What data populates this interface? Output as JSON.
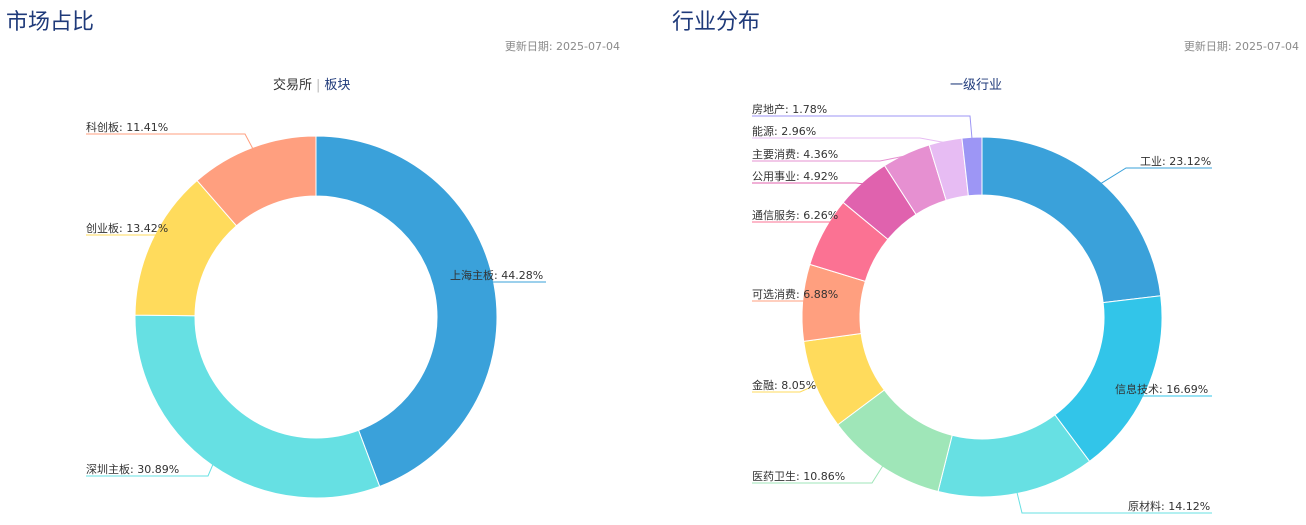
{
  "left_panel": {
    "title": "市场占比",
    "update_date": "更新日期: 2025-07-04",
    "tabs": [
      "交易所",
      "板块"
    ]
  },
  "right_panel": {
    "title": "行业分布",
    "update_date": "更新日期: 2025-07-04",
    "tab": "一级行业"
  },
  "chart_data": [
    {
      "type": "pie",
      "donut": true,
      "categories": [
        "上海主板",
        "深圳主板",
        "创业板",
        "科创板"
      ],
      "values": [
        44.28,
        30.89,
        13.42,
        11.41
      ],
      "labels": [
        "上海主板: 44.28%",
        "深圳主板: 30.89%",
        "创业板: 13.42%",
        "科创板: 11.41%"
      ],
      "colors": [
        "#3aa1da",
        "#66e0e3",
        "#ffdb5c",
        "#ff9f7f"
      ]
    },
    {
      "type": "pie",
      "donut": true,
      "categories": [
        "工业",
        "信息技术",
        "原材料",
        "医药卫生",
        "金融",
        "可选消费",
        "通信服务",
        "公用事业",
        "主要消费",
        "能源",
        "房地产"
      ],
      "values": [
        23.12,
        16.69,
        14.12,
        10.86,
        8.05,
        6.88,
        6.26,
        4.92,
        4.36,
        2.96,
        1.78
      ],
      "labels": [
        "工业: 23.12%",
        "信息技术: 16.69%",
        "原材料: 14.12%",
        "医药卫生: 10.86%",
        "金融: 8.05%",
        "可选消费: 6.88%",
        "通信服务: 6.26%",
        "公用事业: 4.92%",
        "主要消费: 4.36%",
        "能源: 2.96%",
        "房地产: 1.78%"
      ],
      "colors": [
        "#3aa1da",
        "#32c5e9",
        "#67e0e3",
        "#9fe6b8",
        "#ffdb5c",
        "#ff9f7f",
        "#fb7293",
        "#e062ae",
        "#e690d1",
        "#e7bcf3",
        "#9d96f5"
      ]
    }
  ]
}
